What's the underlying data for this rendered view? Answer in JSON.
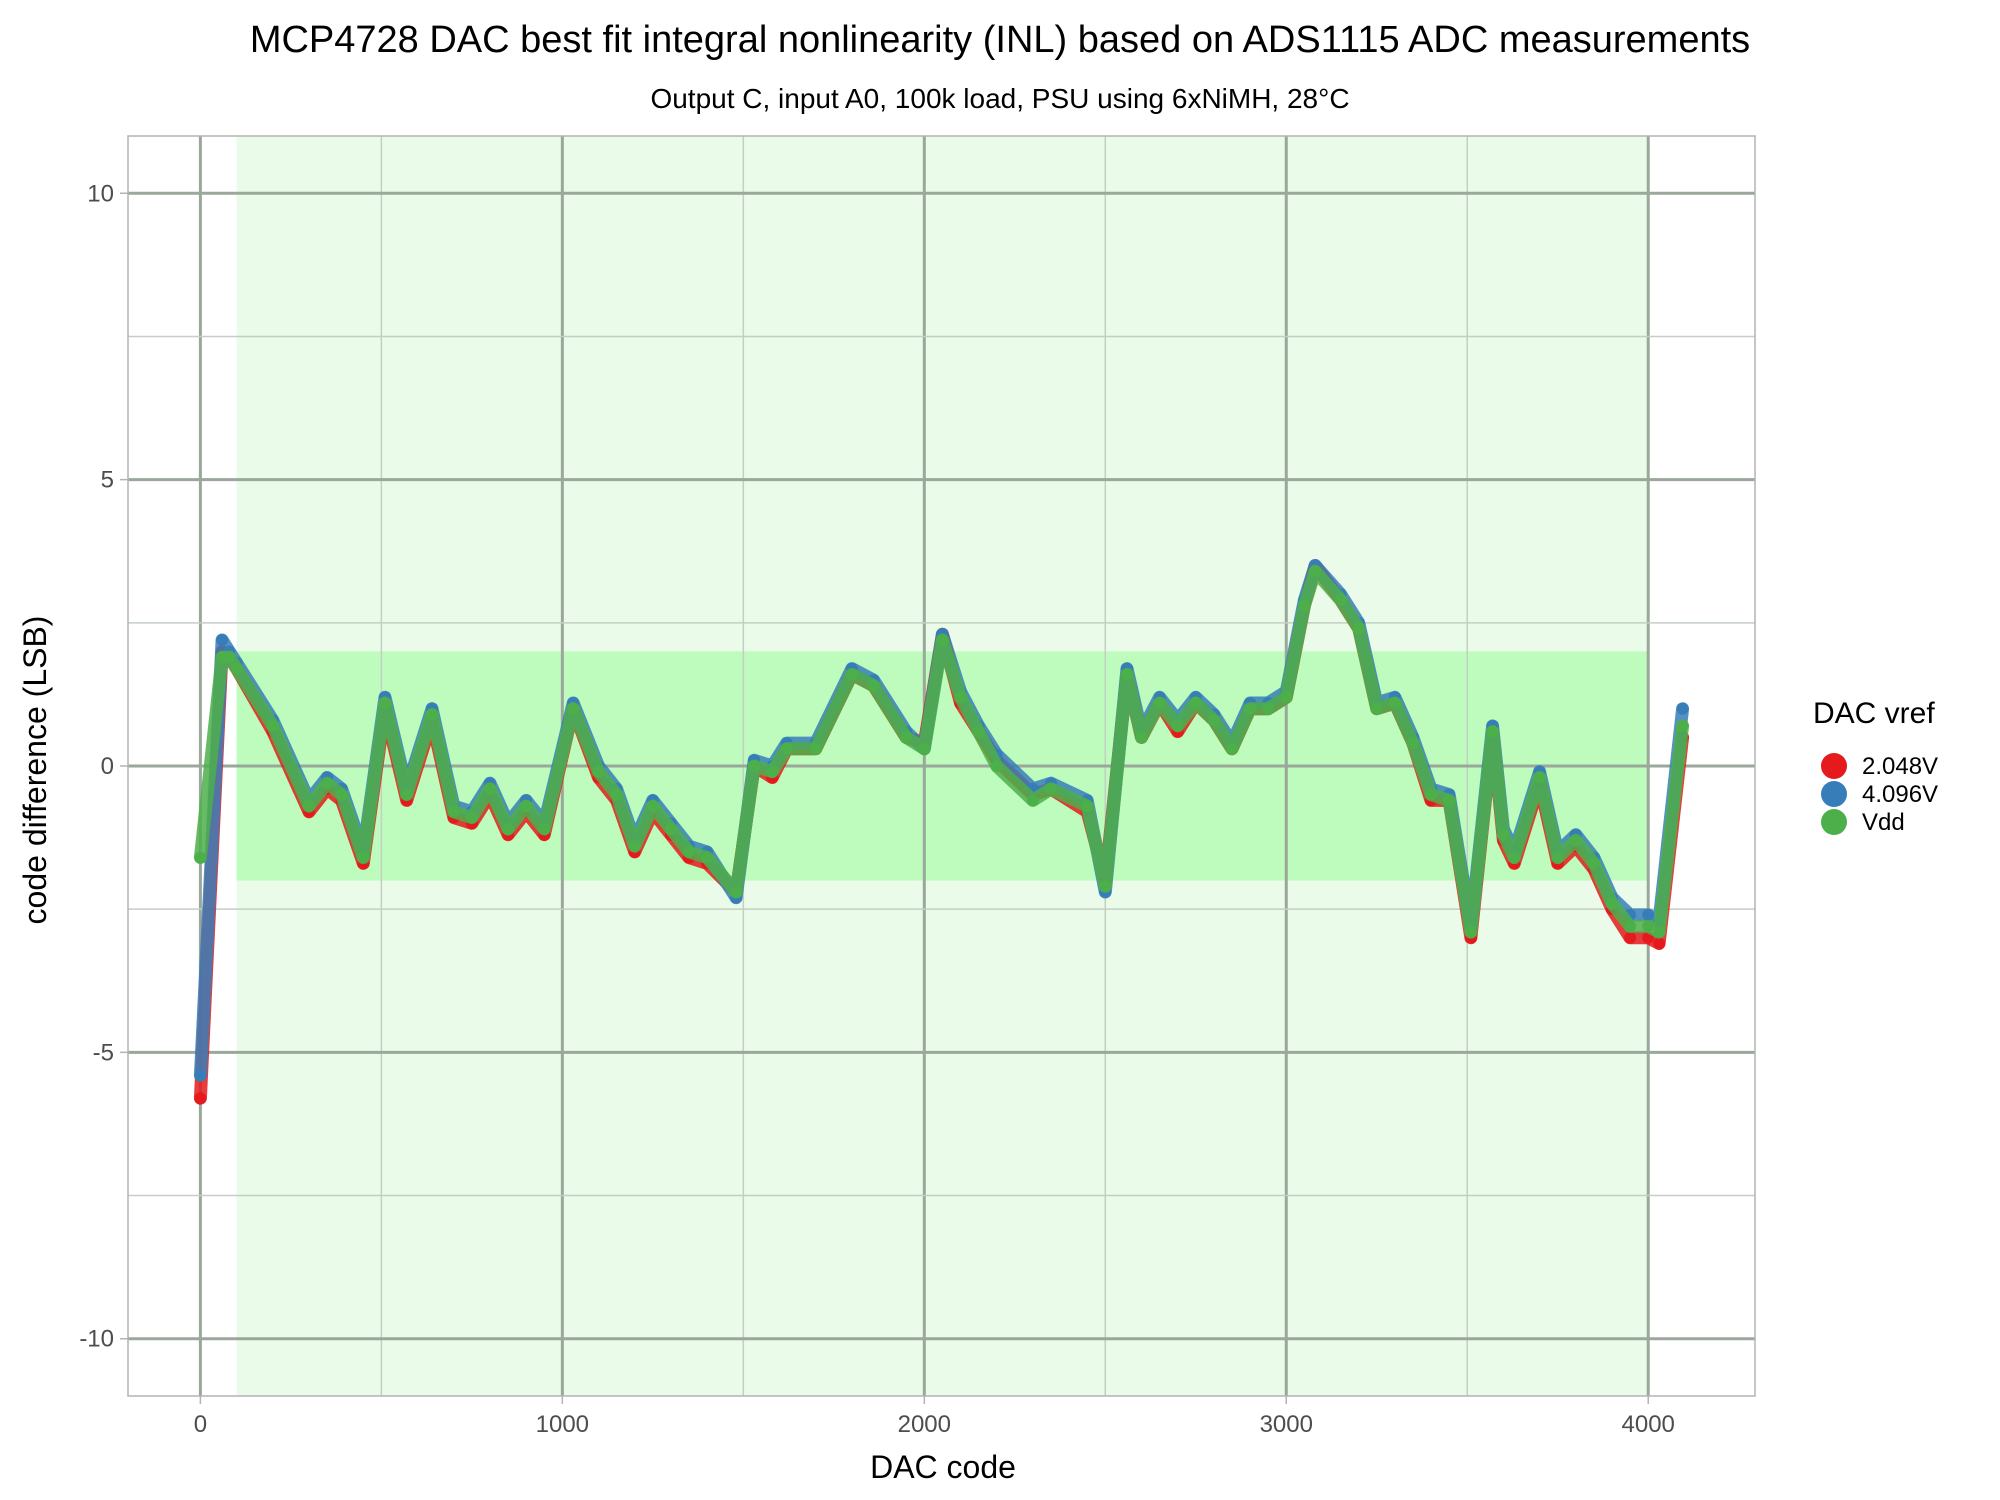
{
  "chart_data": {
    "type": "scatter",
    "title": "MCP4728 DAC best fit integral nonlinearity (INL) based on ADS1115 ADC measurements",
    "subtitle": "Output C, input A0, 100k load, PSU using 6xNiMH, 28°C",
    "xlabel": "DAC code",
    "ylabel": "code difference (LSB)",
    "xlim": [
      -200,
      4295
    ],
    "ylim": [
      -11,
      11
    ],
    "x_ticks": [
      0,
      1000,
      2000,
      3000,
      4000
    ],
    "x_tick_labels": [
      "0",
      "1000",
      "2000",
      "3000",
      "4000"
    ],
    "y_ticks": [
      -10,
      -5,
      0,
      5,
      10
    ],
    "y_tick_labels": [
      "-10",
      "-5",
      "0",
      "5",
      "10"
    ],
    "grid": true,
    "legend_position": "right",
    "legend_title": "DAC vref",
    "shaded_regions": [
      {
        "x": [
          100,
          4000
        ],
        "y": [
          -11,
          11
        ],
        "color": "#eafbea"
      },
      {
        "x": [
          100,
          4000
        ],
        "y": [
          -2,
          2
        ],
        "color": "#bdfcbd"
      }
    ],
    "series": [
      {
        "name": "2.048V",
        "color": "#e41a1c",
        "x": [
          0,
          60,
          80,
          100,
          200,
          300,
          350,
          390,
          450,
          510,
          570,
          640,
          700,
          750,
          800,
          850,
          900,
          950,
          1030,
          1100,
          1150,
          1200,
          1250,
          1300,
          1350,
          1400,
          1480,
          1530,
          1580,
          1620,
          1700,
          1800,
          1860,
          1950,
          2000,
          2050,
          2100,
          2150,
          2200,
          2300,
          2350,
          2450,
          2500,
          2560,
          2600,
          2650,
          2700,
          2750,
          2800,
          2850,
          2900,
          2950,
          3000,
          3050,
          3080,
          3150,
          3200,
          3250,
          3300,
          3350,
          3400,
          3450,
          3510,
          3570,
          3600,
          3630,
          3700,
          3750,
          3800,
          3850,
          3900,
          3950,
          4000,
          4030,
          4095
        ],
        "y": [
          -5.8,
          2.0,
          1.9,
          1.7,
          0.6,
          -0.8,
          -0.4,
          -0.6,
          -1.7,
          1.0,
          -0.6,
          0.8,
          -0.9,
          -1.0,
          -0.5,
          -1.2,
          -0.8,
          -1.2,
          1.0,
          -0.2,
          -0.6,
          -1.5,
          -0.8,
          -1.2,
          -1.6,
          -1.7,
          -2.2,
          0.0,
          -0.2,
          0.3,
          0.3,
          1.6,
          1.4,
          0.5,
          0.4,
          2.3,
          1.1,
          0.6,
          0.1,
          -0.5,
          -0.4,
          -0.8,
          -2.0,
          1.6,
          0.5,
          1.1,
          0.6,
          1.1,
          0.8,
          0.3,
          1.0,
          1.0,
          1.2,
          2.8,
          3.5,
          2.9,
          2.4,
          1.0,
          1.1,
          0.4,
          -0.6,
          -0.6,
          -3.0,
          0.6,
          -1.3,
          -1.7,
          -0.3,
          -1.7,
          -1.4,
          -1.8,
          -2.5,
          -3.0,
          -3.0,
          -3.1,
          0.5
        ]
      },
      {
        "name": "4.096V",
        "color": "#377eb8",
        "x": [
          0,
          60,
          80,
          100,
          200,
          300,
          350,
          390,
          450,
          510,
          570,
          640,
          700,
          750,
          800,
          850,
          900,
          950,
          1030,
          1100,
          1150,
          1200,
          1250,
          1300,
          1350,
          1400,
          1480,
          1530,
          1580,
          1620,
          1700,
          1800,
          1860,
          1950,
          2000,
          2050,
          2100,
          2150,
          2200,
          2300,
          2350,
          2450,
          2500,
          2560,
          2600,
          2650,
          2700,
          2750,
          2800,
          2850,
          2900,
          2950,
          3000,
          3050,
          3080,
          3150,
          3200,
          3250,
          3300,
          3350,
          3400,
          3450,
          3510,
          3570,
          3600,
          3630,
          3700,
          3750,
          3800,
          3850,
          3900,
          3950,
          4000,
          4030,
          4095
        ],
        "y": [
          -5.4,
          2.2,
          2.0,
          1.8,
          0.8,
          -0.6,
          -0.2,
          -0.4,
          -1.5,
          1.2,
          -0.4,
          1.0,
          -0.7,
          -0.8,
          -0.3,
          -1.0,
          -0.6,
          -1.0,
          1.1,
          0.0,
          -0.4,
          -1.3,
          -0.6,
          -1.0,
          -1.4,
          -1.5,
          -2.3,
          0.1,
          0.0,
          0.4,
          0.4,
          1.7,
          1.5,
          0.6,
          0.3,
          2.3,
          1.3,
          0.7,
          0.2,
          -0.4,
          -0.3,
          -0.6,
          -2.2,
          1.7,
          0.6,
          1.2,
          0.8,
          1.2,
          0.9,
          0.4,
          1.1,
          1.1,
          1.3,
          2.9,
          3.5,
          3.0,
          2.5,
          1.1,
          1.2,
          0.5,
          -0.4,
          -0.5,
          -2.8,
          0.7,
          -1.1,
          -1.5,
          -0.1,
          -1.5,
          -1.2,
          -1.6,
          -2.3,
          -2.6,
          -2.6,
          -2.7,
          1.0
        ]
      },
      {
        "name": "Vdd",
        "color": "#4daf4a",
        "x": [
          0,
          60,
          80,
          100,
          200,
          300,
          350,
          390,
          450,
          510,
          570,
          640,
          700,
          750,
          800,
          850,
          900,
          950,
          1030,
          1100,
          1150,
          1200,
          1250,
          1300,
          1350,
          1400,
          1480,
          1530,
          1580,
          1620,
          1700,
          1800,
          1860,
          1950,
          2000,
          2050,
          2100,
          2150,
          2200,
          2300,
          2350,
          2450,
          2500,
          2560,
          2600,
          2650,
          2700,
          2750,
          2800,
          2850,
          2900,
          2950,
          3000,
          3050,
          3080,
          3150,
          3200,
          3250,
          3300,
          3350,
          3400,
          3450,
          3510,
          3570,
          3600,
          3630,
          3700,
          3750,
          3800,
          3850,
          3900,
          3950,
          4000,
          4030,
          4095
        ],
        "y": [
          -1.6,
          1.9,
          1.9,
          1.7,
          0.7,
          -0.7,
          -0.3,
          -0.5,
          -1.6,
          1.1,
          -0.5,
          0.9,
          -0.8,
          -0.9,
          -0.4,
          -1.1,
          -0.7,
          -1.1,
          1.0,
          -0.1,
          -0.5,
          -1.4,
          -0.7,
          -1.1,
          -1.5,
          -1.6,
          -2.2,
          0.0,
          -0.1,
          0.3,
          0.3,
          1.6,
          1.4,
          0.5,
          0.3,
          2.2,
          1.2,
          0.6,
          0.0,
          -0.6,
          -0.4,
          -0.7,
          -2.1,
          1.6,
          0.5,
          1.1,
          0.7,
          1.1,
          0.8,
          0.3,
          1.0,
          1.0,
          1.2,
          2.8,
          3.4,
          2.9,
          2.4,
          1.0,
          1.1,
          0.4,
          -0.5,
          -0.6,
          -2.9,
          0.6,
          -1.2,
          -1.6,
          -0.2,
          -1.6,
          -1.3,
          -1.7,
          -2.4,
          -2.8,
          -2.8,
          -2.9,
          0.7
        ]
      }
    ]
  }
}
